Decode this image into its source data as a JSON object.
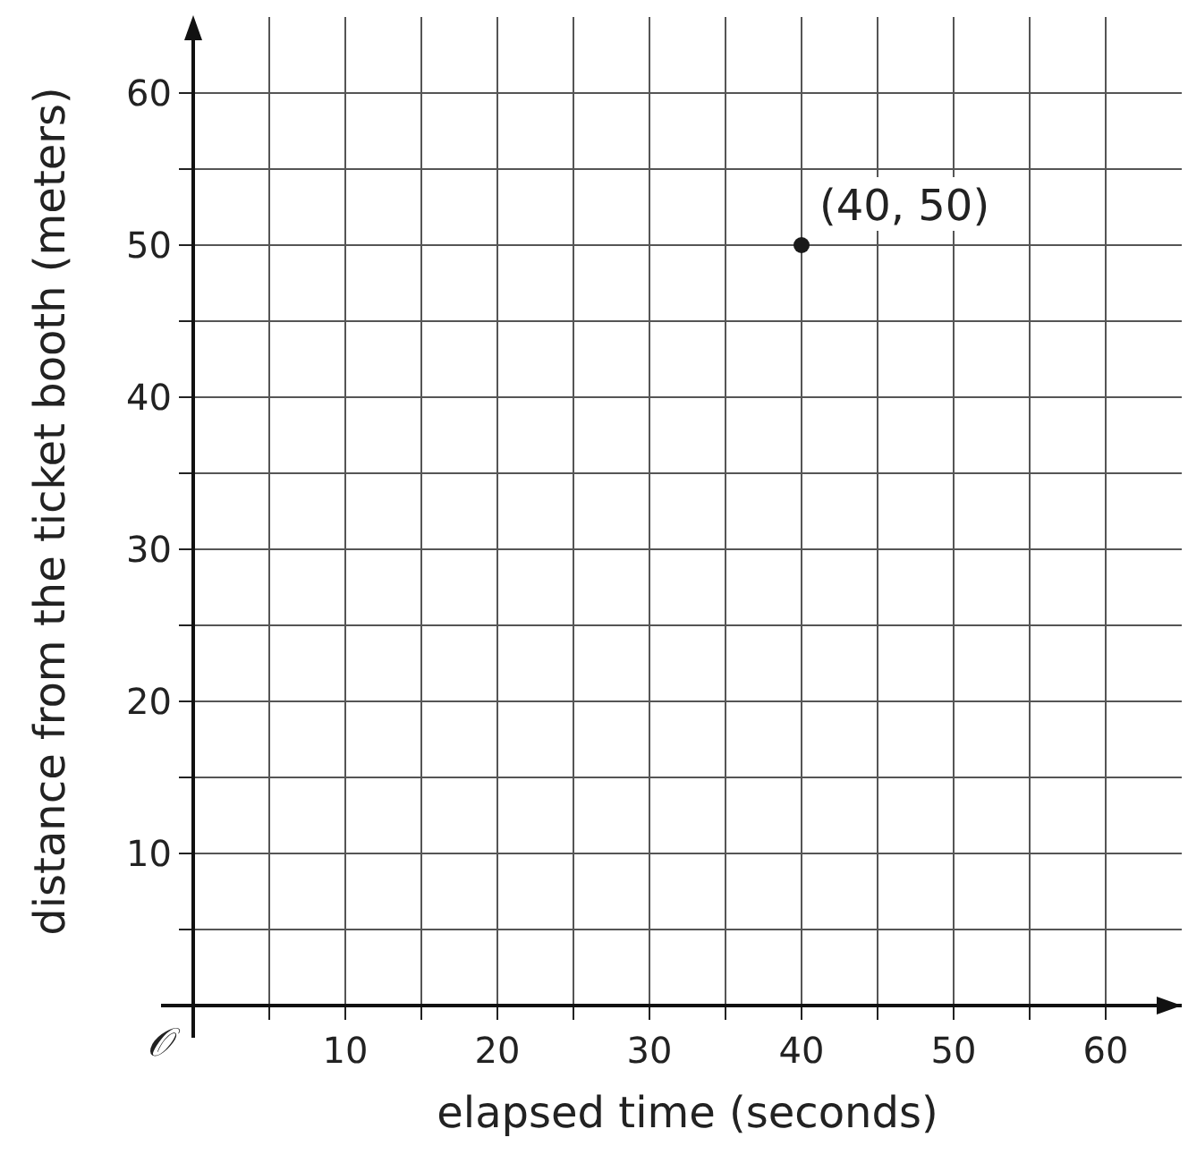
{
  "chart_data": {
    "type": "scatter",
    "xlabel": "elapsed time (seconds)",
    "ylabel": "distance from the ticket booth (meters)",
    "x": [
      40
    ],
    "values": [
      50
    ],
    "color": "#1a1a1a",
    "marker": "circle",
    "grid": true,
    "xlim": [
      0,
      65
    ],
    "ylim": [
      0,
      65
    ],
    "xticks": [
      {
        "value": 5,
        "label": null
      },
      10,
      {
        "value": 15,
        "label": null
      },
      20,
      {
        "value": 25,
        "label": null
      },
      30,
      {
        "value": 35,
        "label": null
      },
      40,
      {
        "value": 45,
        "label": null
      },
      50,
      {
        "value": 55,
        "label": null
      },
      60
    ],
    "yticks": [
      {
        "value": 5,
        "label": null
      },
      10,
      {
        "value": 15,
        "label": null
      },
      20,
      {
        "value": 25,
        "label": null
      },
      30,
      {
        "value": 35,
        "label": null
      },
      40,
      {
        "value": 45,
        "label": null
      },
      50,
      {
        "value": 55,
        "label": null
      },
      60
    ],
    "annotations": [
      {
        "text": "(40, 50)",
        "x": 40,
        "y": 50
      },
      "𝒪"
    ]
  }
}
